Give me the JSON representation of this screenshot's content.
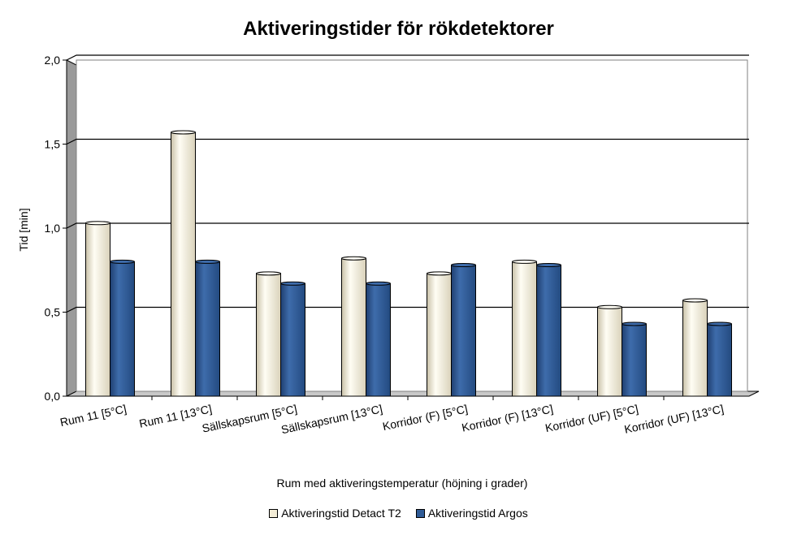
{
  "chart_data": {
    "type": "bar",
    "title": "Aktiveringstider för rökdetektorer",
    "xlabel": "Rum med aktiveringstemperatur (höjning i grader)",
    "ylabel": "Tid [min]",
    "ylim": [
      0,
      2.0
    ],
    "yticks": [
      "0,0",
      "0,5",
      "1,0",
      "1,5",
      "2,0"
    ],
    "categories": [
      "Rum 11 [5°C]",
      "Rum 11 [13°C]",
      "Sällskapsrum [5°C]",
      "Sällskapsrum [13°C]",
      "Korridor (F) [5°C]",
      "Korridor (F) [13°C]",
      "Korridor (UF) [5°C]",
      "Korridor (UF) [13°C]"
    ],
    "series": [
      {
        "name": "Aktiveringstid Detact T2",
        "color": "#f3ecd6",
        "values": [
          1.03,
          1.57,
          0.73,
          0.82,
          0.73,
          0.8,
          0.53,
          0.57
        ]
      },
      {
        "name": "Aktiveringstid Argos",
        "color": "#2f5b96",
        "values": [
          0.8,
          0.8,
          0.67,
          0.67,
          0.78,
          0.78,
          0.43,
          0.43
        ]
      }
    ],
    "grid": true,
    "legend_position": "bottom"
  }
}
